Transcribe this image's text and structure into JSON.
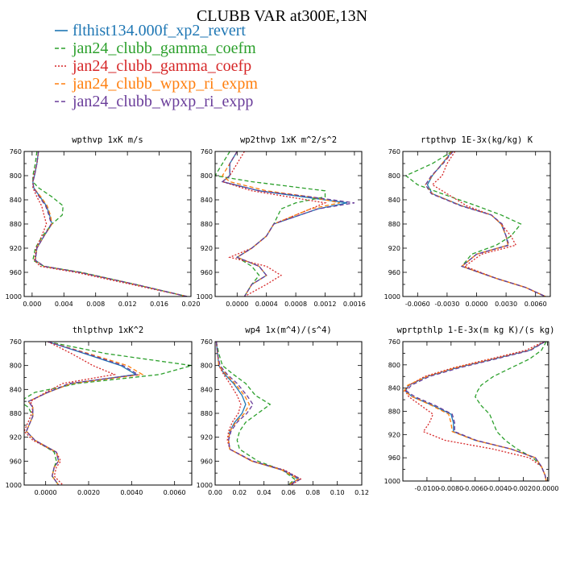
{
  "figure": {
    "title": "CLUBB VAR at300E,13N"
  },
  "legend": [
    {
      "name": "flthist134.000f_xp2_revert",
      "color": "#1f77b4",
      "dash": "solid"
    },
    {
      "name": "jan24_clubb_gamma_coefm",
      "color": "#2ca02c",
      "dash": "dashed"
    },
    {
      "name": "jan24_clubb_gamma_coefp",
      "color": "#d62728",
      "dash": "dotted"
    },
    {
      "name": "jan24_clubb_wpxp_ri_expm",
      "color": "#ff7f0e",
      "dash": "dashed"
    },
    {
      "name": "jan24_clubb_wpxp_ri_expp",
      "color": "#6a3d9a",
      "dash": "dashed"
    }
  ],
  "chart_data": [
    {
      "type": "line",
      "title": "wpthvp  1xK m/s",
      "xlim": [
        -0.001,
        0.02
      ],
      "ylim": [
        760,
        1000
      ],
      "xticks": [
        0.0,
        0.004,
        0.008,
        0.012,
        0.016,
        0.02
      ],
      "xtick_labels": [
        "0.000",
        "0.004",
        "0.008",
        "0.012",
        "0.016",
        "0.020"
      ],
      "yticks": [
        760,
        800,
        840,
        880,
        920,
        960,
        1000
      ],
      "y": [
        760,
        780,
        800,
        810,
        820,
        835,
        850,
        865,
        880,
        900,
        920,
        940,
        950,
        960,
        980,
        1000
      ],
      "series": [
        {
          "name": "flthist134.000f_xp2_revert",
          "values": [
            0.0008,
            0.0006,
            0.0003,
            0.0001,
            0.0002,
            0.001,
            0.0018,
            0.0022,
            0.0025,
            0.0015,
            0.0006,
            0.0004,
            0.0015,
            0.006,
            0.013,
            0.0195
          ]
        },
        {
          "name": "jan24_clubb_gamma_coefm",
          "values": [
            0.0006,
            0.0004,
            0.0001,
            0.0001,
            0.0008,
            0.0025,
            0.0039,
            0.0038,
            0.0025,
            0.0013,
            0.0004,
            0.0001,
            0.0015,
            0.0062,
            0.013,
            0.0195
          ]
        },
        {
          "name": "jan24_clubb_gamma_coefp",
          "values": [
            0.0008,
            0.0006,
            0.0002,
            0.0001,
            0.0001,
            0.0006,
            0.0012,
            0.0015,
            0.0018,
            0.0012,
            0.0005,
            0.0003,
            0.001,
            0.0055,
            0.0125,
            0.0195
          ]
        },
        {
          "name": "jan24_clubb_wpxp_ri_expm",
          "values": [
            0.0008,
            0.0006,
            0.0003,
            0.0001,
            0.0002,
            0.0011,
            0.0019,
            0.0023,
            0.0025,
            0.0015,
            0.0006,
            0.0004,
            0.0015,
            0.006,
            0.013,
            0.0195
          ]
        },
        {
          "name": "jan24_clubb_wpxp_ri_expp",
          "values": [
            0.0008,
            0.0006,
            0.0003,
            0.0001,
            0.0002,
            0.0009,
            0.0017,
            0.0021,
            0.0024,
            0.0015,
            0.0006,
            0.0004,
            0.0015,
            0.006,
            0.013,
            0.0195
          ]
        }
      ]
    },
    {
      "type": "line",
      "title": "wp2thvp  1xK m^2/s^2",
      "xlim": [
        -0.0003,
        0.0017
      ],
      "ylim": [
        760,
        1000
      ],
      "xticks": [
        0.0,
        0.0004,
        0.0008,
        0.0012,
        0.0016
      ],
      "xtick_labels": [
        "0.0000",
        "0.0004",
        "0.0008",
        "0.0012",
        "0.0016"
      ],
      "yticks": [
        760,
        800,
        840,
        880,
        920,
        960,
        1000
      ],
      "y": [
        760,
        780,
        800,
        810,
        825,
        835,
        845,
        855,
        880,
        900,
        920,
        935,
        950,
        965,
        980,
        1000
      ],
      "series": [
        {
          "name": "flthist134.000f_xp2_revert",
          "values": [
            0.0,
            -0.0001,
            -0.0001,
            -0.0002,
            0.0003,
            0.0009,
            0.0015,
            0.0011,
            0.0005,
            0.0004,
            0.0002,
            0.0,
            0.0003,
            0.0004,
            0.0002,
            0.0001
          ]
        },
        {
          "name": "jan24_clubb_gamma_coefm",
          "values": [
            -0.0001,
            -0.0002,
            -0.0003,
            0.0002,
            0.0012,
            0.0012,
            0.0008,
            0.0006,
            0.0005,
            0.0004,
            0.0002,
            0.0,
            0.0002,
            0.0003,
            0.0002,
            0.0001
          ]
        },
        {
          "name": "jan24_clubb_gamma_coefp",
          "values": [
            0.0001,
            0.0,
            -0.0001,
            -0.0002,
            0.0002,
            0.0007,
            0.0012,
            0.001,
            0.0005,
            0.0004,
            0.0002,
            -0.0001,
            0.0004,
            0.0006,
            0.0004,
            0.0001
          ]
        },
        {
          "name": "jan24_clubb_wpxp_ri_expm",
          "values": [
            0.0,
            -0.0001,
            -0.0002,
            -0.0001,
            0.0004,
            0.001,
            0.0014,
            0.001,
            0.0005,
            0.0004,
            0.0002,
            0.0,
            0.0003,
            0.0004,
            0.0002,
            0.0001
          ]
        },
        {
          "name": "jan24_clubb_wpxp_ri_expp",
          "values": [
            0.0,
            -0.0001,
            -0.0001,
            -0.0002,
            0.0003,
            0.001,
            0.0016,
            0.0011,
            0.0005,
            0.0004,
            0.0002,
            0.0,
            0.0003,
            0.0004,
            0.0002,
            0.0001
          ]
        }
      ]
    },
    {
      "type": "line",
      "title": "rtpthvp  1E-3x(kg/kg) K",
      "xlim": [
        -0.0075,
        0.0075
      ],
      "ylim": [
        760,
        1000
      ],
      "xticks": [
        -0.006,
        -0.003,
        0.0,
        0.003,
        0.006
      ],
      "xtick_labels": [
        "-0.0060",
        "-0.0030",
        "0.0000",
        "0.0030",
        "0.0060"
      ],
      "yticks": [
        760,
        800,
        840,
        880,
        920,
        960,
        1000
      ],
      "y": [
        760,
        780,
        800,
        815,
        830,
        850,
        865,
        880,
        900,
        915,
        930,
        950,
        970,
        985,
        1000
      ],
      "series": [
        {
          "name": "flthist134.000f_xp2_revert",
          "values": [
            -0.0025,
            -0.0035,
            -0.0045,
            -0.005,
            -0.0045,
            -0.0015,
            0.0015,
            0.0025,
            0.003,
            0.0032,
            0.0,
            -0.0015,
            0.002,
            0.005,
            0.007
          ]
        },
        {
          "name": "jan24_clubb_gamma_coefm",
          "values": [
            -0.0025,
            -0.0045,
            -0.0072,
            -0.006,
            -0.0035,
            0.0,
            0.0025,
            0.0045,
            0.0035,
            0.002,
            -0.0005,
            -0.0015,
            0.002,
            0.005,
            0.007
          ]
        },
        {
          "name": "jan24_clubb_gamma_coefp",
          "values": [
            -0.0022,
            -0.003,
            -0.0035,
            -0.0045,
            -0.003,
            -0.001,
            0.0015,
            0.0025,
            0.0035,
            0.004,
            0.0005,
            -0.0012,
            0.002,
            0.005,
            0.007
          ]
        },
        {
          "name": "jan24_clubb_wpxp_ri_expm",
          "values": [
            -0.0025,
            -0.0035,
            -0.0045,
            -0.0052,
            -0.0045,
            -0.0015,
            0.0015,
            0.0025,
            0.003,
            0.0032,
            0.0,
            -0.0015,
            0.002,
            0.005,
            0.007
          ]
        },
        {
          "name": "jan24_clubb_wpxp_ri_expp",
          "values": [
            -0.0024,
            -0.0034,
            -0.0046,
            -0.0052,
            -0.0046,
            -0.0016,
            0.0015,
            0.0026,
            0.003,
            0.0033,
            0.0,
            -0.0015,
            0.002,
            0.005,
            0.007
          ]
        }
      ]
    },
    {
      "type": "line",
      "title": "thlpthvp  1xK^2",
      "xlim": [
        -0.001,
        0.0068
      ],
      "ylim": [
        760,
        1000
      ],
      "xticks": [
        0.0,
        0.002,
        0.004,
        0.006
      ],
      "xtick_labels": [
        "0.0000",
        "0.0020",
        "0.0040",
        "0.0060"
      ],
      "yticks": [
        760,
        800,
        840,
        880,
        920,
        960,
        1000
      ],
      "y": [
        760,
        780,
        800,
        815,
        830,
        845,
        860,
        870,
        885,
        910,
        925,
        945,
        960,
        970,
        985,
        1000
      ],
      "series": [
        {
          "name": "flthist134.000f_xp2_revert",
          "values": [
            0.0001,
            0.0018,
            0.0035,
            0.0042,
            0.0012,
            0.0001,
            -0.0008,
            -0.0006,
            -0.0006,
            -0.0009,
            -0.0005,
            0.0005,
            0.0006,
            0.0004,
            0.0003,
            0.0006
          ]
        },
        {
          "name": "jan24_clubb_gamma_coefm",
          "values": [
            0.0001,
            0.0028,
            0.0068,
            0.0053,
            0.0015,
            -0.0005,
            -0.0012,
            -0.0008,
            -0.0006,
            -0.0009,
            -0.0005,
            0.0004,
            0.0005,
            0.0004,
            0.0003,
            0.0006
          ]
        },
        {
          "name": "jan24_clubb_gamma_coefp",
          "values": [
            0.0001,
            0.0012,
            0.0022,
            0.0032,
            0.0008,
            0.0,
            -0.0007,
            -0.0006,
            -0.0007,
            -0.001,
            -0.0006,
            0.0005,
            0.0007,
            0.0005,
            0.0004,
            0.0008
          ]
        },
        {
          "name": "jan24_clubb_wpxp_ri_expm",
          "values": [
            0.0001,
            0.002,
            0.0038,
            0.0045,
            0.0012,
            0.0001,
            -0.0008,
            -0.0006,
            -0.0006,
            -0.0009,
            -0.0005,
            0.0005,
            0.0006,
            0.0004,
            0.0003,
            0.0006
          ]
        },
        {
          "name": "jan24_clubb_wpxp_ri_expp",
          "values": [
            0.0001,
            0.0019,
            0.0036,
            0.0043,
            0.0011,
            0.0001,
            -0.0008,
            -0.0006,
            -0.0006,
            -0.0009,
            -0.0005,
            0.0005,
            0.0006,
            0.0004,
            0.0003,
            0.0006
          ]
        }
      ]
    },
    {
      "type": "line",
      "title": "wp4  1x(m^4)/(s^4)",
      "xlim": [
        0.0,
        0.12
      ],
      "ylim": [
        760,
        1000
      ],
      "xticks": [
        0.0,
        0.02,
        0.04,
        0.06,
        0.08,
        0.1,
        0.12
      ],
      "xtick_labels": [
        "0.00",
        "0.02",
        "0.04",
        "0.06",
        "0.08",
        "0.10",
        "0.12"
      ],
      "yticks": [
        760,
        800,
        840,
        880,
        920,
        960,
        1000
      ],
      "y": [
        760,
        780,
        800,
        815,
        830,
        850,
        865,
        880,
        895,
        910,
        925,
        940,
        960,
        975,
        990,
        1000
      ],
      "series": [
        {
          "name": "flthist134.000f_xp2_revert",
          "values": [
            0.001,
            0.002,
            0.003,
            0.008,
            0.015,
            0.022,
            0.025,
            0.022,
            0.016,
            0.012,
            0.011,
            0.012,
            0.03,
            0.055,
            0.068,
            0.06
          ]
        },
        {
          "name": "jan24_clubb_gamma_coefm",
          "values": [
            0.001,
            0.003,
            0.006,
            0.015,
            0.025,
            0.033,
            0.045,
            0.035,
            0.025,
            0.02,
            0.018,
            0.02,
            0.035,
            0.055,
            0.065,
            0.06
          ]
        },
        {
          "name": "jan24_clubb_gamma_coefp",
          "values": [
            0.001,
            0.002,
            0.003,
            0.007,
            0.012,
            0.018,
            0.021,
            0.019,
            0.014,
            0.011,
            0.01,
            0.012,
            0.03,
            0.057,
            0.07,
            0.062
          ]
        },
        {
          "name": "jan24_clubb_wpxp_ri_expm",
          "values": [
            0.001,
            0.002,
            0.003,
            0.009,
            0.016,
            0.024,
            0.028,
            0.024,
            0.017,
            0.012,
            0.011,
            0.012,
            0.03,
            0.055,
            0.068,
            0.06
          ]
        },
        {
          "name": "jan24_clubb_wpxp_ri_expp",
          "values": [
            0.001,
            0.002,
            0.004,
            0.01,
            0.018,
            0.026,
            0.031,
            0.026,
            0.018,
            0.013,
            0.011,
            0.012,
            0.031,
            0.056,
            0.07,
            0.061
          ]
        }
      ]
    },
    {
      "type": "line",
      "title": "wprtpthlp  1-E-3x(m kg K)/(s kg)",
      "xlim": [
        -0.012,
        0.0001
      ],
      "ylim": [
        760,
        1000
      ],
      "xticks": [
        -0.01,
        -0.008,
        -0.006,
        -0.004,
        -0.002,
        0.0
      ],
      "xtick_labels": [
        "-0.0100",
        "-0.0080",
        "-0.0060",
        "-0.0040",
        "-0.0020",
        "0.0000"
      ],
      "yticks": [
        760,
        800,
        840,
        880,
        920,
        960,
        1000
      ],
      "y": [
        760,
        775,
        790,
        805,
        820,
        835,
        845,
        855,
        870,
        885,
        900,
        915,
        930,
        945,
        960,
        975,
        990,
        1000
      ],
      "series": [
        {
          "name": "flthist134.000f_xp2_revert",
          "values": [
            -0.0002,
            -0.0015,
            -0.0045,
            -0.0075,
            -0.01,
            -0.0115,
            -0.0118,
            -0.0112,
            -0.0095,
            -0.008,
            -0.0078,
            -0.0078,
            -0.006,
            -0.003,
            -0.001,
            -0.0005,
            -0.0002,
            -0.0001
          ]
        },
        {
          "name": "jan24_clubb_gamma_coefm",
          "values": [
            -0.0001,
            -0.0005,
            -0.0015,
            -0.003,
            -0.0045,
            -0.0055,
            -0.0058,
            -0.006,
            -0.0055,
            -0.0048,
            -0.0045,
            -0.0042,
            -0.0035,
            -0.0025,
            -0.0012,
            -0.0005,
            -0.0002,
            -0.0001
          ]
        },
        {
          "name": "jan24_clubb_gamma_coefp",
          "values": [
            -0.0003,
            -0.0018,
            -0.0048,
            -0.0078,
            -0.0102,
            -0.0115,
            -0.0118,
            -0.0115,
            -0.0105,
            -0.0095,
            -0.0098,
            -0.0103,
            -0.0085,
            -0.0045,
            -0.0015,
            -0.0005,
            -0.0002,
            -0.0001
          ]
        },
        {
          "name": "jan24_clubb_wpxp_ri_expm",
          "values": [
            -0.0002,
            -0.0015,
            -0.0045,
            -0.0076,
            -0.01,
            -0.0116,
            -0.0119,
            -0.0112,
            -0.0096,
            -0.0082,
            -0.008,
            -0.0079,
            -0.006,
            -0.003,
            -0.001,
            -0.0005,
            -0.0002,
            -0.0001
          ]
        },
        {
          "name": "jan24_clubb_wpxp_ri_expp",
          "values": [
            -0.0002,
            -0.0014,
            -0.0043,
            -0.0073,
            -0.0098,
            -0.0113,
            -0.0117,
            -0.011,
            -0.0093,
            -0.0079,
            -0.0077,
            -0.0077,
            -0.0059,
            -0.003,
            -0.001,
            -0.0005,
            -0.0002,
            -0.0001
          ]
        }
      ]
    }
  ]
}
